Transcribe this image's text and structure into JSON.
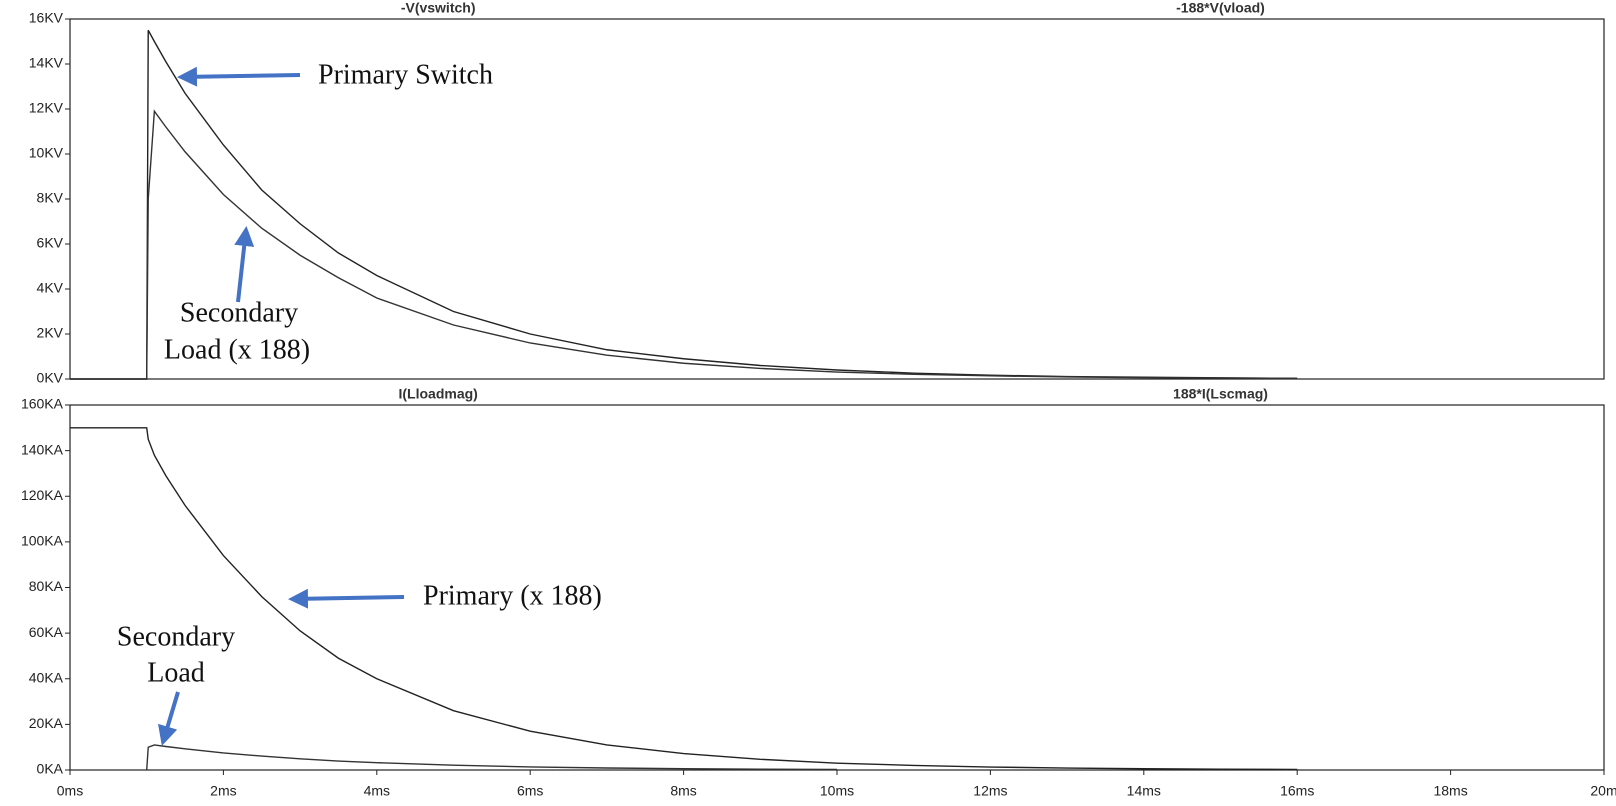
{
  "chart_data": [
    {
      "type": "line",
      "x": [
        0,
        1,
        1.02,
        1.1,
        1.25,
        1.5,
        2,
        2.5,
        3,
        3.5,
        4,
        5,
        6,
        7,
        8,
        9,
        10,
        11,
        12,
        13,
        14,
        15,
        16
      ],
      "series": [
        {
          "name": "-V(vswitch)",
          "color": "#222222",
          "values": [
            0,
            0,
            15.5,
            15.0,
            14.1,
            12.7,
            10.4,
            8.4,
            6.9,
            5.6,
            4.6,
            3.0,
            2.0,
            1.3,
            0.9,
            0.6,
            0.4,
            0.26,
            0.17,
            0.11,
            0.08,
            0.05,
            0.03
          ]
        },
        {
          "name": "-188*V(vload)",
          "color": "#333333",
          "values": [
            0,
            0,
            8,
            11.9,
            11.2,
            10.1,
            8.2,
            6.7,
            5.5,
            4.5,
            3.6,
            2.4,
            1.6,
            1.06,
            0.7,
            0.47,
            0.31,
            0.21,
            0.14,
            0.09,
            0.06,
            0.04,
            0.03
          ]
        }
      ],
      "xlim": [
        0,
        20
      ],
      "ylim": [
        0,
        16
      ],
      "yticks": [
        {
          "value": 0,
          "label": "0KV"
        },
        {
          "value": 2,
          "label": "2KV"
        },
        {
          "value": 4,
          "label": "4KV"
        },
        {
          "value": 6,
          "label": "6KV"
        },
        {
          "value": 8,
          "label": "8KV"
        },
        {
          "value": 10,
          "label": "10KV"
        },
        {
          "value": 12,
          "label": "12KV"
        },
        {
          "value": 14,
          "label": "14KV"
        },
        {
          "value": 16,
          "label": "16KV"
        }
      ],
      "annotations": [
        {
          "lines": [
            "Primary Switch"
          ]
        },
        {
          "lines": [
            "Secondary",
            "Load (x 188)"
          ]
        }
      ]
    },
    {
      "type": "line",
      "x": [
        0,
        1,
        1.02,
        1.1,
        1.25,
        1.5,
        2,
        2.5,
        3,
        3.5,
        4,
        5,
        6,
        7,
        8,
        9,
        10,
        11,
        12,
        13,
        14,
        15,
        16
      ],
      "series": [
        {
          "name": "I(Lloadmag)",
          "color": "#333333",
          "values": [
            null,
            0,
            10,
            11,
            10.3,
            9.3,
            7.5,
            6.1,
            4.9,
            3.9,
            3.2,
            2.1,
            1.35,
            0.88,
            0.57,
            0.37,
            0.24,
            null,
            null,
            null,
            null,
            null,
            null
          ]
        },
        {
          "name": "188*I(Lscmag)",
          "color": "#222222",
          "values": [
            150,
            150,
            145,
            138,
            129,
            116,
            94,
            76,
            61,
            49,
            40,
            26,
            17,
            11,
            7.2,
            4.7,
            3.0,
            2.0,
            1.3,
            0.85,
            0.55,
            0.36,
            0.23
          ]
        }
      ],
      "xlim": [
        0,
        20
      ],
      "xticks": [
        {
          "value": 0,
          "label": "0ms"
        },
        {
          "value": 2,
          "label": "2ms"
        },
        {
          "value": 4,
          "label": "4ms"
        },
        {
          "value": 6,
          "label": "6ms"
        },
        {
          "value": 8,
          "label": "8ms"
        },
        {
          "value": 10,
          "label": "10ms"
        },
        {
          "value": 12,
          "label": "12ms"
        },
        {
          "value": 14,
          "label": "14ms"
        },
        {
          "value": 16,
          "label": "16ms"
        },
        {
          "value": 18,
          "label": "18ms"
        },
        {
          "value": 20,
          "label": "20m"
        }
      ],
      "ylim": [
        0,
        160
      ],
      "yticks": [
        {
          "value": 0,
          "label": "0KA"
        },
        {
          "value": 20,
          "label": "20KA"
        },
        {
          "value": 40,
          "label": "40KA"
        },
        {
          "value": 60,
          "label": "60KA"
        },
        {
          "value": 80,
          "label": "80KA"
        },
        {
          "value": 100,
          "label": "100KA"
        },
        {
          "value": 120,
          "label": "120KA"
        },
        {
          "value": 140,
          "label": "140KA"
        },
        {
          "value": 160,
          "label": "160KA"
        }
      ],
      "annotations": [
        {
          "lines": [
            "Primary (x 188)"
          ]
        },
        {
          "lines": [
            "Secondary",
            "Load"
          ]
        }
      ]
    }
  ]
}
